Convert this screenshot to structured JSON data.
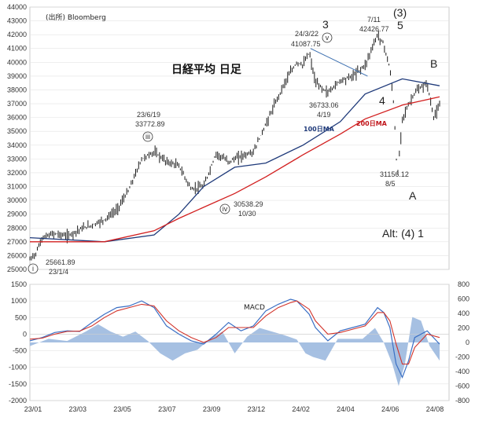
{
  "source": "(出所) Bloomberg",
  "chart_data": [
    {
      "type": "line",
      "title": "日経平均 日足",
      "series": [
        {
          "name": "100日MA",
          "color": "#1f3a7a",
          "points": [
            [
              0,
              27300
            ],
            [
              60,
              27000
            ],
            [
              100,
              27500
            ],
            [
              120,
              29000
            ],
            [
              140,
              31000
            ],
            [
              165,
              32400
            ],
            [
              190,
              32700
            ],
            [
              220,
              34000
            ],
            [
              250,
              35700
            ],
            [
              270,
              37700
            ],
            [
              300,
              38800
            ],
            [
              330,
              38300
            ]
          ]
        },
        {
          "name": "200日MA",
          "color": "#d21f1f",
          "points": [
            [
              0,
              27000
            ],
            [
              60,
              27000
            ],
            [
              100,
              27800
            ],
            [
              120,
              28700
            ],
            [
              140,
              29500
            ],
            [
              165,
              30500
            ],
            [
              190,
              31700
            ],
            [
              220,
              33300
            ],
            [
              250,
              34800
            ],
            [
              270,
              35900
            ],
            [
              300,
              36900
            ],
            [
              330,
              37500
            ]
          ]
        }
      ],
      "price": [
        [
          0,
          25700
        ],
        [
          5,
          26200
        ],
        [
          10,
          27300
        ],
        [
          20,
          27600
        ],
        [
          30,
          27400
        ],
        [
          40,
          27900
        ],
        [
          50,
          28200
        ],
        [
          60,
          28600
        ],
        [
          70,
          29300
        ],
        [
          80,
          30800
        ],
        [
          90,
          33000
        ],
        [
          100,
          33500
        ],
        [
          110,
          32800
        ],
        [
          120,
          32500
        ],
        [
          130,
          30800
        ],
        [
          140,
          31000
        ],
        [
          150,
          33400
        ],
        [
          160,
          32800
        ],
        [
          170,
          33200
        ],
        [
          180,
          33500
        ],
        [
          185,
          34500
        ],
        [
          195,
          36500
        ],
        [
          205,
          38500
        ],
        [
          215,
          40000
        ],
        [
          220,
          39800
        ],
        [
          225,
          40700
        ],
        [
          230,
          38500
        ],
        [
          240,
          37800
        ],
        [
          250,
          38700
        ],
        [
          260,
          39000
        ],
        [
          270,
          39800
        ],
        [
          280,
          42000
        ],
        [
          285,
          41300
        ],
        [
          290,
          39500
        ],
        [
          293,
          37000
        ],
        [
          296,
          31500
        ],
        [
          300,
          36000
        ],
        [
          310,
          37800
        ],
        [
          320,
          38500
        ],
        [
          325,
          36000
        ],
        [
          330,
          36800
        ]
      ],
      "ylim": [
        25000,
        44000
      ],
      "yticks": [
        25000,
        26000,
        27000,
        28000,
        29000,
        30000,
        31000,
        32000,
        33000,
        34000,
        35000,
        36000,
        37000,
        38000,
        39000,
        40000,
        41000,
        42000,
        43000,
        44000
      ],
      "annotations": {
        "wave_i": "i",
        "wave_iii": "iii",
        "wave_iv": "iv",
        "wave_v": "v",
        "label_3": "3",
        "label_4": "4",
        "label_5": "5",
        "label_3p": "(3)",
        "label_A": "A",
        "label_B": "B",
        "alt": "Alt: (4) 1",
        "low_2301": [
          "25661.89",
          "23/1/4"
        ],
        "high_2306": [
          "23/6/19",
          "33772.89"
        ],
        "low_2310": [
          "30538.29",
          "10/30"
        ],
        "high_2403": [
          "24/3/22",
          "41087.75"
        ],
        "low_2404": [
          "36733.06",
          "4/19"
        ],
        "high_2407": [
          "7/11",
          "42426.77"
        ],
        "low_2408": [
          "31156.12",
          "8/5"
        ],
        "ma100": "100日MA",
        "ma200": "200日MA"
      }
    },
    {
      "type": "area",
      "title": "MACD",
      "left_ylim": [
        -2000,
        1500
      ],
      "left_yticks": [
        -2000,
        -1500,
        -1000,
        -500,
        0,
        500,
        1000,
        1500
      ],
      "right_ylim": [
        -800,
        800
      ],
      "right_yticks": [
        -800,
        -600,
        -400,
        -200,
        0,
        200,
        400,
        600,
        800
      ],
      "x_labels": [
        "23/01",
        "23/03",
        "23/05",
        "23/07",
        "23/09",
        "23/12",
        "24/02",
        "24/04",
        "24/06",
        "24/08"
      ],
      "macd": [
        [
          0,
          -200
        ],
        [
          10,
          -100
        ],
        [
          20,
          50
        ],
        [
          30,
          100
        ],
        [
          40,
          80
        ],
        [
          50,
          350
        ],
        [
          60,
          600
        ],
        [
          70,
          800
        ],
        [
          80,
          850
        ],
        [
          90,
          1000
        ],
        [
          100,
          800
        ],
        [
          110,
          250
        ],
        [
          120,
          0
        ],
        [
          130,
          -200
        ],
        [
          140,
          -300
        ],
        [
          150,
          0
        ],
        [
          160,
          350
        ],
        [
          170,
          100
        ],
        [
          180,
          250
        ],
        [
          190,
          700
        ],
        [
          200,
          900
        ],
        [
          210,
          1050
        ],
        [
          215,
          1000
        ],
        [
          225,
          600
        ],
        [
          230,
          200
        ],
        [
          240,
          -200
        ],
        [
          250,
          100
        ],
        [
          260,
          200
        ],
        [
          270,
          300
        ],
        [
          280,
          800
        ],
        [
          285,
          650
        ],
        [
          290,
          200
        ],
        [
          295,
          -900
        ],
        [
          300,
          -1300
        ],
        [
          305,
          -800
        ],
        [
          310,
          -100
        ],
        [
          320,
          100
        ],
        [
          330,
          -300
        ]
      ],
      "signal": [
        [
          0,
          -150
        ],
        [
          10,
          -120
        ],
        [
          20,
          0
        ],
        [
          30,
          80
        ],
        [
          40,
          90
        ],
        [
          50,
          250
        ],
        [
          60,
          500
        ],
        [
          70,
          700
        ],
        [
          80,
          800
        ],
        [
          90,
          900
        ],
        [
          100,
          850
        ],
        [
          110,
          400
        ],
        [
          120,
          100
        ],
        [
          130,
          -100
        ],
        [
          140,
          -250
        ],
        [
          150,
          -100
        ],
        [
          160,
          200
        ],
        [
          170,
          200
        ],
        [
          180,
          200
        ],
        [
          190,
          550
        ],
        [
          200,
          800
        ],
        [
          210,
          950
        ],
        [
          215,
          1000
        ],
        [
          225,
          750
        ],
        [
          230,
          400
        ],
        [
          240,
          0
        ],
        [
          250,
          50
        ],
        [
          260,
          150
        ],
        [
          270,
          250
        ],
        [
          280,
          650
        ],
        [
          285,
          650
        ],
        [
          290,
          400
        ],
        [
          295,
          -300
        ],
        [
          300,
          -900
        ],
        [
          305,
          -900
        ],
        [
          310,
          -400
        ],
        [
          320,
          0
        ],
        [
          330,
          -100
        ]
      ],
      "hist": [
        [
          0,
          -50
        ],
        [
          15,
          50
        ],
        [
          30,
          20
        ],
        [
          45,
          150
        ],
        [
          55,
          250
        ],
        [
          65,
          150
        ],
        [
          75,
          80
        ],
        [
          85,
          150
        ],
        [
          95,
          20
        ],
        [
          105,
          -150
        ],
        [
          115,
          -250
        ],
        [
          125,
          -150
        ],
        [
          135,
          -100
        ],
        [
          145,
          50
        ],
        [
          155,
          150
        ],
        [
          165,
          -150
        ],
        [
          175,
          80
        ],
        [
          185,
          200
        ],
        [
          195,
          150
        ],
        [
          205,
          100
        ],
        [
          215,
          40
        ],
        [
          222,
          -150
        ],
        [
          228,
          -200
        ],
        [
          238,
          -250
        ],
        [
          248,
          50
        ],
        [
          258,
          50
        ],
        [
          268,
          50
        ],
        [
          278,
          200
        ],
        [
          285,
          0
        ],
        [
          292,
          -300
        ],
        [
          297,
          -600
        ],
        [
          302,
          -300
        ],
        [
          308,
          350
        ],
        [
          315,
          300
        ],
        [
          322,
          -50
        ],
        [
          330,
          -250
        ]
      ]
    }
  ]
}
